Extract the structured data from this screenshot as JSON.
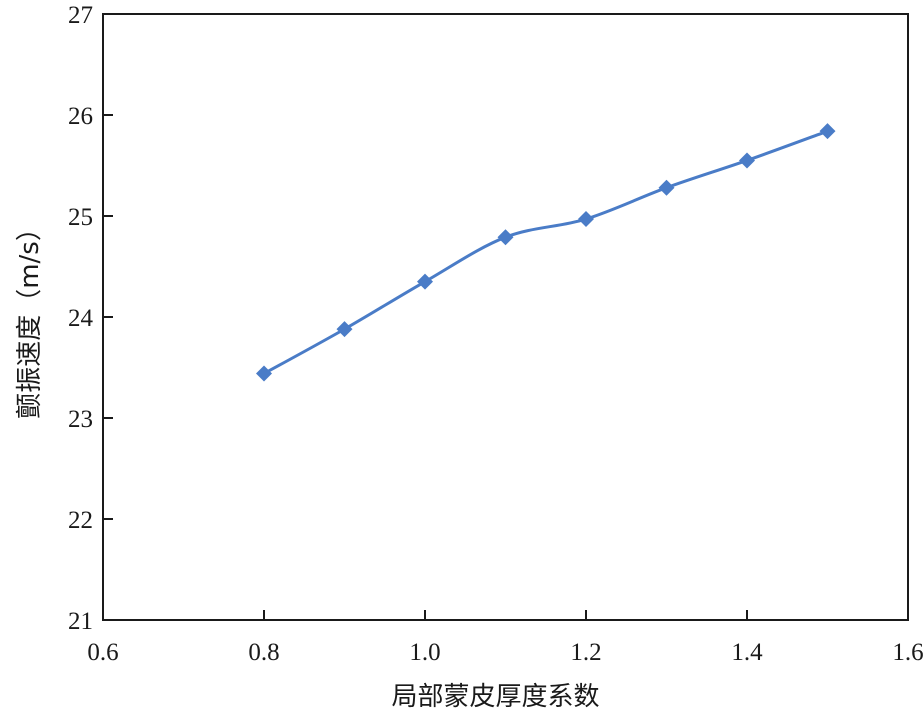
{
  "chart_data": {
    "type": "line",
    "xlabel": "局部蒙皮厚度系数",
    "ylabel": "颤振速度（m/s）",
    "xlim": [
      0.6,
      1.6
    ],
    "ylim": [
      21,
      27
    ],
    "x_ticks": [
      "0.6",
      "0.8",
      "1.0",
      "1.2",
      "1.4",
      "1.6"
    ],
    "y_ticks": [
      "21",
      "22",
      "23",
      "24",
      "25",
      "26",
      "27"
    ],
    "grid": false,
    "marker": "diamond",
    "colors": {
      "series": "#4a7cc7",
      "axis": "#1a1a1a"
    },
    "series": [
      {
        "x": [
          0.8,
          0.9,
          1.0,
          1.1,
          1.2,
          1.3,
          1.4,
          1.5
        ],
        "values": [
          23.44,
          23.88,
          24.35,
          24.79,
          24.97,
          25.28,
          25.55,
          25.84
        ]
      }
    ]
  }
}
